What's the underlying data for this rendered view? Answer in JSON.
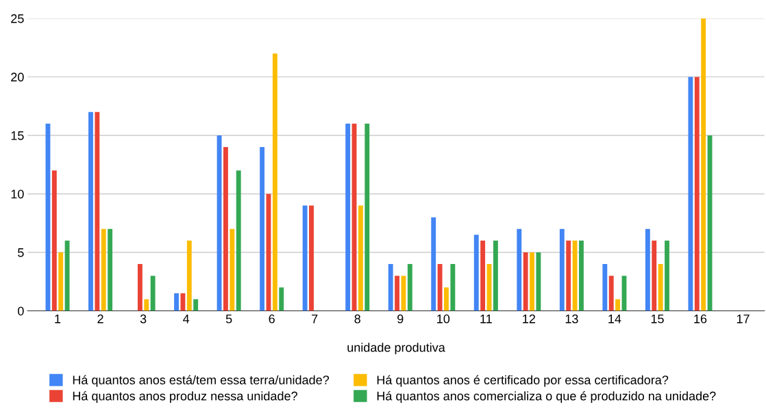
{
  "chart_data": {
    "type": "bar",
    "xlabel": "unidade produtiva",
    "categories": [
      "1",
      "2",
      "3",
      "4",
      "5",
      "6",
      "7",
      "8",
      "9",
      "10",
      "11",
      "12",
      "13",
      "14",
      "15",
      "16",
      "17"
    ],
    "series": [
      {
        "name": "Há quantos anos está/tem essa terra/unidade?",
        "color": "#4285f4",
        "values": [
          16,
          17,
          null,
          1.5,
          15,
          14,
          9,
          16,
          4,
          8,
          6.5,
          7,
          7,
          4,
          7,
          20,
          null
        ]
      },
      {
        "name": "Há quantos anos produz nessa unidade?",
        "color": "#ea4335",
        "values": [
          12,
          17,
          4,
          1.5,
          14,
          10,
          9,
          16,
          3,
          4,
          6,
          5,
          6,
          3,
          6,
          20,
          null
        ]
      },
      {
        "name": "Há quantos anos é certificado por essa certificadora?",
        "color": "#fbbc04",
        "values": [
          5,
          7,
          1,
          6,
          7,
          22,
          null,
          9,
          3,
          2,
          4,
          5,
          6,
          1,
          4,
          25,
          null
        ]
      },
      {
        "name": "Há quantos anos comercializa o que é produzido na unidade?",
        "color": "#34a853",
        "values": [
          6,
          7,
          3,
          1,
          12,
          2,
          null,
          16,
          4,
          4,
          6,
          5,
          6,
          3,
          6,
          15,
          null
        ]
      }
    ],
    "ylim": [
      0,
      25
    ],
    "yticks": [
      0,
      5,
      10,
      15,
      20,
      25
    ],
    "grid": "y",
    "legend": "bottom"
  }
}
